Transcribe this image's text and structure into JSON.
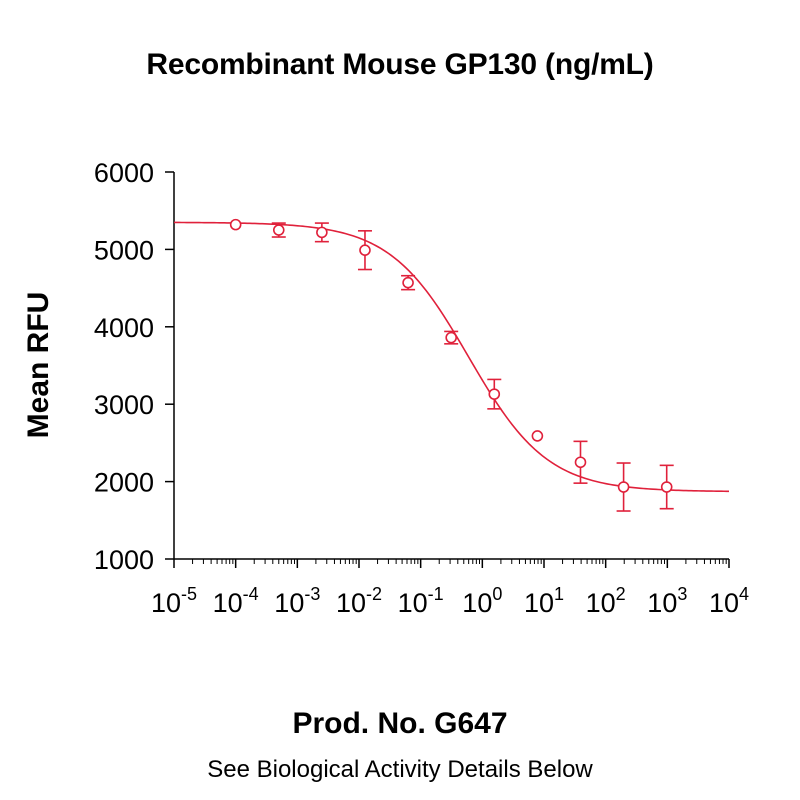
{
  "header": {
    "title": "Recombinant Mouse GP130 (ng/mL)"
  },
  "footer": {
    "product": "Prod. No. G647",
    "note": "See Biological Activity Details Below"
  },
  "chart_data": {
    "type": "scatter",
    "title": "Recombinant Mouse GP130 (ng/mL)",
    "xlabel": "",
    "ylabel": "Mean RFU",
    "x_scale": "log",
    "xlim": [
      1e-05,
      10000
    ],
    "ylim": [
      1000,
      6000
    ],
    "x_ticks": [
      -5,
      -4,
      -3,
      -2,
      -1,
      0,
      1,
      2,
      3,
      4
    ],
    "y_ticks": [
      1000,
      2000,
      3000,
      4000,
      5000,
      6000
    ],
    "color": "#e0213b",
    "grid": false,
    "series": [
      {
        "x": [
          0.0001,
          0.0005,
          0.0025,
          0.0125,
          0.0625,
          0.3125,
          1.5625,
          7.8125,
          39.0625,
          195.3125,
          976.5625
        ],
        "y": [
          5320,
          5250,
          5220,
          4990,
          4570,
          3860,
          3130,
          2590,
          2250,
          1930,
          1930
        ],
        "error": [
          0,
          90,
          120,
          250,
          90,
          80,
          190,
          0,
          270,
          310,
          280
        ]
      }
    ],
    "fit_curve": {
      "model": "4PL",
      "top": 5350,
      "bottom": 1870,
      "ec50": 0.6,
      "hill": 0.68
    }
  }
}
